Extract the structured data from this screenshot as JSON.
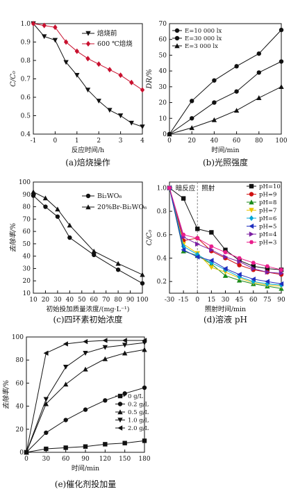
{
  "chart_data": [
    {
      "id": "a",
      "type": "line",
      "caption": "(a)焙烧操作",
      "xlabel": "反应时间/h",
      "ylabel": "C/C₀",
      "xlim": [
        -1,
        4
      ],
      "ylim": [
        0.4,
        1.0
      ],
      "xticks": [
        -1,
        0,
        1,
        2,
        3,
        4
      ],
      "yticks": [
        0.4,
        0.5,
        0.6,
        0.7,
        0.8,
        0.9,
        1.0
      ],
      "legend": "top-right",
      "series": [
        {
          "name": "焙烧前",
          "color": "#111111",
          "marker": "tri-down",
          "x": [
            -1,
            -0.5,
            0,
            0.5,
            1,
            1.5,
            2,
            2.5,
            3,
            3.5,
            4
          ],
          "y": [
            1.0,
            0.93,
            0.91,
            0.79,
            0.72,
            0.64,
            0.58,
            0.53,
            0.5,
            0.46,
            0.44
          ]
        },
        {
          "name": "600 ℃焙烧",
          "color": "#c8102e",
          "marker": "diamond",
          "x": [
            -1,
            -0.5,
            0,
            0.5,
            1,
            1.5,
            2,
            2.5,
            3,
            3.5,
            4
          ],
          "y": [
            1.0,
            0.99,
            0.98,
            0.9,
            0.85,
            0.81,
            0.78,
            0.75,
            0.72,
            0.68,
            0.64
          ]
        }
      ]
    },
    {
      "id": "b",
      "type": "line",
      "caption": "(b)光照强度",
      "xlabel": "时间/min",
      "ylabel": "DR/%",
      "xlim": [
        0,
        100
      ],
      "ylim": [
        0,
        70
      ],
      "xticks": [
        0,
        20,
        40,
        60,
        80,
        100
      ],
      "yticks": [
        0,
        10,
        20,
        30,
        40,
        50,
        60,
        70
      ],
      "legend": "top-left",
      "series": [
        {
          "name": "E=10 000 lx",
          "color": "#111111",
          "marker": "circle",
          "x": [
            0,
            20,
            40,
            60,
            80,
            100
          ],
          "y": [
            0,
            21,
            34,
            43,
            51,
            66
          ]
        },
        {
          "name": "E=30 000 lx",
          "color": "#111111",
          "marker": "circle",
          "x": [
            0,
            20,
            40,
            60,
            80,
            100
          ],
          "y": [
            0,
            10,
            20,
            27,
            39,
            46
          ]
        },
        {
          "name": "E=3 000 lx",
          "color": "#111111",
          "marker": "triangle",
          "x": [
            0,
            20,
            40,
            60,
            80,
            100
          ],
          "y": [
            0,
            4,
            9,
            15,
            23,
            30
          ]
        }
      ]
    },
    {
      "id": "c",
      "type": "line",
      "caption": "(c)四环素初始浓度",
      "xlabel": "初始投加质量浓度/(mg·L⁻¹)",
      "ylabel": "去除率/%",
      "xlim": [
        10,
        100
      ],
      "ylim": [
        10,
        100
      ],
      "xticks": [
        10,
        20,
        30,
        40,
        50,
        60,
        70,
        80,
        90,
        100
      ],
      "yticks": [
        10,
        20,
        30,
        40,
        50,
        60,
        70,
        80,
        90,
        100
      ],
      "legend": "top-right",
      "series": [
        {
          "name": "Bi₂WO₆",
          "color": "#111111",
          "marker": "circle",
          "x": [
            10,
            20,
            30,
            40,
            60,
            80,
            100
          ],
          "y": [
            89,
            80,
            72,
            55,
            41,
            29,
            18
          ]
        },
        {
          "name": "20%Br-Bi₂WO₆",
          "color": "#111111",
          "marker": "triangle",
          "x": [
            10,
            20,
            30,
            40,
            60,
            80,
            100
          ],
          "y": [
            92,
            87,
            78,
            65,
            44,
            34,
            25
          ]
        }
      ]
    },
    {
      "id": "d",
      "type": "line",
      "caption": "(d)溶液 pH",
      "xlabel": "照射时间/min",
      "ylabel": "C/C₀",
      "xlim": [
        -30,
        90
      ],
      "ylim": [
        0.1,
        1.05
      ],
      "xticks": [
        -30,
        -15,
        0,
        15,
        30,
        45,
        60,
        75,
        90
      ],
      "yticks": [
        0.2,
        0.4,
        0.6,
        0.8,
        1.0
      ],
      "annotations": [
        "暗反应",
        "照射"
      ],
      "legend": "top-right",
      "series": [
        {
          "name": "pH=10",
          "color": "#111111",
          "marker": "square",
          "x": [
            -30,
            -15,
            0,
            15,
            30,
            45,
            60,
            75,
            90
          ],
          "y": [
            1.0,
            0.91,
            0.65,
            0.62,
            0.47,
            0.38,
            0.33,
            0.31,
            0.3
          ]
        },
        {
          "name": "pH=9",
          "color": "#d01010",
          "marker": "circle",
          "x": [
            -30,
            -15,
            0,
            15,
            30,
            45,
            60,
            75,
            90
          ],
          "y": [
            1.0,
            0.55,
            0.57,
            0.46,
            0.4,
            0.34,
            0.3,
            0.28,
            0.26
          ]
        },
        {
          "name": "pH=8",
          "color": "#1a8a1a",
          "marker": "triangle",
          "x": [
            -30,
            -15,
            0,
            15,
            30,
            45,
            60,
            75,
            90
          ],
          "y": [
            1.0,
            0.46,
            0.42,
            0.35,
            0.25,
            0.21,
            0.18,
            0.16,
            0.14
          ]
        },
        {
          "name": "pH=7",
          "color": "#e8c400",
          "marker": "tri-down",
          "x": [
            -30,
            -15,
            0,
            15,
            30,
            45,
            60,
            75,
            90
          ],
          "y": [
            1.0,
            0.52,
            0.44,
            0.32,
            0.28,
            0.23,
            0.19,
            0.17,
            0.16
          ]
        },
        {
          "name": "pH=6",
          "color": "#00a6d6",
          "marker": "diamond",
          "x": [
            -30,
            -15,
            0,
            15,
            30,
            45,
            60,
            75,
            90
          ],
          "y": [
            1.0,
            0.5,
            0.43,
            0.36,
            0.3,
            0.24,
            0.2,
            0.18,
            0.17
          ]
        },
        {
          "name": "pH=5",
          "color": "#1f2fbf",
          "marker": "tri-left",
          "x": [
            -30,
            -15,
            0,
            15,
            30,
            45,
            60,
            75,
            90
          ],
          "y": [
            1.0,
            0.47,
            0.41,
            0.38,
            0.31,
            0.26,
            0.22,
            0.2,
            0.18
          ]
        },
        {
          "name": "pH=4",
          "color": "#7b1fa2",
          "marker": "tri-right",
          "x": [
            -30,
            -15,
            0,
            15,
            30,
            45,
            60,
            75,
            90
          ],
          "y": [
            1.0,
            0.58,
            0.52,
            0.47,
            0.41,
            0.37,
            0.31,
            0.28,
            0.27
          ]
        },
        {
          "name": "pH=3",
          "color": "#e91e8c",
          "marker": "hexagon",
          "x": [
            -30,
            -15,
            0,
            15,
            30,
            45,
            60,
            75,
            90
          ],
          "y": [
            1.0,
            0.6,
            0.57,
            0.5,
            0.45,
            0.4,
            0.36,
            0.33,
            0.3
          ]
        }
      ]
    },
    {
      "id": "e",
      "type": "line",
      "caption": "(e)催化剂投加量",
      "xlabel": "时间/min",
      "ylabel": "去除率/%",
      "xlim": [
        0,
        180
      ],
      "ylim": [
        0,
        100
      ],
      "xticks": [
        0,
        30,
        60,
        90,
        120,
        150,
        180
      ],
      "yticks": [
        0,
        20,
        40,
        60,
        80,
        100
      ],
      "legend": "right",
      "series": [
        {
          "name": "0 g/L",
          "color": "#111111",
          "marker": "square",
          "x": [
            0,
            30,
            60,
            90,
            120,
            150,
            180
          ],
          "y": [
            0,
            3,
            4,
            5,
            7,
            8,
            10
          ]
        },
        {
          "name": "0.2 g/L",
          "color": "#111111",
          "marker": "circle",
          "x": [
            0,
            30,
            60,
            90,
            120,
            150,
            180
          ],
          "y": [
            0,
            17,
            28,
            37,
            45,
            51,
            56
          ]
        },
        {
          "name": "0.5 g/L",
          "color": "#111111",
          "marker": "triangle",
          "x": [
            0,
            30,
            60,
            90,
            120,
            150,
            180
          ],
          "y": [
            0,
            42,
            59,
            72,
            81,
            86,
            89
          ]
        },
        {
          "name": "1.0 g/L",
          "color": "#111111",
          "marker": "tri-down",
          "x": [
            0,
            30,
            60,
            90,
            120,
            150,
            180
          ],
          "y": [
            0,
            46,
            74,
            86,
            91,
            93,
            95
          ]
        },
        {
          "name": "2.0 g/L",
          "color": "#111111",
          "marker": "tri-left",
          "x": [
            0,
            30,
            60,
            90,
            120,
            150,
            180
          ],
          "y": [
            0,
            86,
            94,
            96,
            97,
            97,
            97
          ]
        }
      ]
    }
  ]
}
